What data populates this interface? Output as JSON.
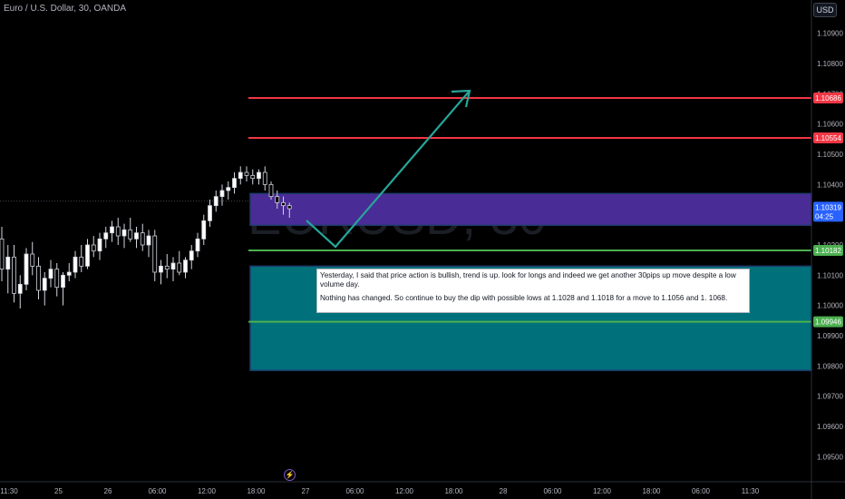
{
  "header": {
    "symbol_title": "Euro / U.S. Dollar, 30, OANDA",
    "currency_button": "USD"
  },
  "watermark": "EURUSD, 30",
  "note": {
    "paragraph1": "Yesterday, I said that price action is bullish, trend is up. look for longs and indeed we get another 30pips up move despite a low volume day.",
    "paragraph2": "Nothing has changed. So continue to buy the dip with possible lows at 1.1028 and 1.1018 for a move to 1.1056 and 1. 1068."
  },
  "price_axis": {
    "ticks": [
      "1.10900",
      "1.10800",
      "1.10700",
      "1.10600",
      "1.10500",
      "1.10400",
      "1.10300",
      "1.10200",
      "1.10100",
      "1.10000",
      "1.09900",
      "1.09800",
      "1.09700",
      "1.09600",
      "1.09500"
    ],
    "ylim": [
      1.0942,
      1.1101
    ]
  },
  "time_axis": {
    "labels": [
      "11:30",
      "25",
      "26",
      "06:00",
      "12:00",
      "18:00",
      "27",
      "06:00",
      "12:00",
      "18:00",
      "28",
      "06:00",
      "12:00",
      "18:00",
      "06:00",
      "11:30"
    ]
  },
  "levels": [
    {
      "price": 1.10686,
      "label": "1.10686",
      "color": "#f23645"
    },
    {
      "price": 1.10554,
      "label": "1.10554",
      "color": "#f23645"
    },
    {
      "price": 1.10182,
      "label": "1.10182",
      "color": "#4caf50"
    },
    {
      "price": 1.09946,
      "label": "1.09946",
      "color": "#4caf50"
    }
  ],
  "current_price": {
    "label": "1.10319",
    "countdown": "04:25",
    "color": "#2962ff"
  },
  "zones": [
    {
      "top": 1.1037,
      "bottom": 1.10265,
      "color": "#4a2c96"
    },
    {
      "top": 1.1013,
      "bottom": 1.09785,
      "color": "#00707a"
    }
  ],
  "colors": {
    "up": "#ffffff",
    "down": "#ffffff",
    "arrow": "#26a69a"
  },
  "chart_data": {
    "type": "candlestick",
    "title": "Euro / U.S. Dollar, 30, OANDA",
    "series": [
      {
        "name": "EURUSD",
        "values": [
          [
            1.1022,
            1.1026,
            1.1008,
            1.1012
          ],
          [
            1.1012,
            1.102,
            1.1004,
            1.1016
          ],
          [
            1.1016,
            1.102,
            1.1001,
            1.1004
          ],
          [
            1.1004,
            1.101,
            1.0999,
            1.1007
          ],
          [
            1.1007,
            1.1019,
            1.1005,
            1.1017
          ],
          [
            1.1017,
            1.1021,
            1.101,
            1.1013
          ],
          [
            1.1013,
            1.1016,
            1.1002,
            1.1005
          ],
          [
            1.1005,
            1.1011,
            1.1,
            1.1009
          ],
          [
            1.1009,
            1.1015,
            1.1006,
            1.1012
          ],
          [
            1.1012,
            1.1014,
            1.1003,
            1.1006
          ],
          [
            1.1006,
            1.1011,
            1.1,
            1.101
          ],
          [
            1.101,
            1.1014,
            1.1008,
            1.1011
          ],
          [
            1.1011,
            1.1018,
            1.1009,
            1.1016
          ],
          [
            1.1016,
            1.102,
            1.1011,
            1.1013
          ],
          [
            1.1013,
            1.1022,
            1.1012,
            1.102
          ],
          [
            1.102,
            1.1023,
            1.1016,
            1.1018
          ],
          [
            1.1018,
            1.1024,
            1.1015,
            1.1022
          ],
          [
            1.1022,
            1.1026,
            1.1019,
            1.1024
          ],
          [
            1.1024,
            1.1028,
            1.1021,
            1.1026
          ],
          [
            1.1026,
            1.1029,
            1.102,
            1.1023
          ],
          [
            1.1023,
            1.1027,
            1.1019,
            1.1025
          ],
          [
            1.1025,
            1.1029,
            1.1021,
            1.1022
          ],
          [
            1.1022,
            1.1026,
            1.1019,
            1.1024
          ],
          [
            1.1024,
            1.1027,
            1.1018,
            1.102
          ],
          [
            1.102,
            1.1025,
            1.1016,
            1.1023
          ],
          [
            1.1023,
            1.1025,
            1.1008,
            1.1011
          ],
          [
            1.1011,
            1.1015,
            1.1007,
            1.1013
          ],
          [
            1.1013,
            1.1017,
            1.1009,
            1.1012
          ],
          [
            1.1012,
            1.1016,
            1.1008,
            1.1014
          ],
          [
            1.1014,
            1.1018,
            1.101,
            1.1011
          ],
          [
            1.1011,
            1.1016,
            1.1009,
            1.1015
          ],
          [
            1.1015,
            1.102,
            1.1012,
            1.1018
          ],
          [
            1.1018,
            1.1024,
            1.1016,
            1.1022
          ],
          [
            1.1022,
            1.103,
            1.102,
            1.1028
          ],
          [
            1.1028,
            1.1035,
            1.1026,
            1.1033
          ],
          [
            1.1033,
            1.1038,
            1.1031,
            1.1036
          ],
          [
            1.1036,
            1.104,
            1.1033,
            1.1038
          ],
          [
            1.1038,
            1.1041,
            1.1035,
            1.1039
          ],
          [
            1.1039,
            1.1044,
            1.1037,
            1.1042
          ],
          [
            1.1042,
            1.1046,
            1.104,
            1.1044
          ],
          [
            1.1044,
            1.1046,
            1.1041,
            1.1043
          ],
          [
            1.1043,
            1.1045,
            1.104,
            1.1042
          ],
          [
            1.1042,
            1.1045,
            1.104,
            1.1044
          ],
          [
            1.1044,
            1.1046,
            1.1038,
            1.104
          ],
          [
            1.104,
            1.1041,
            1.1035,
            1.1036
          ],
          [
            1.1036,
            1.1038,
            1.1032,
            1.1034
          ],
          [
            1.1034,
            1.1036,
            1.103,
            1.1033
          ],
          [
            1.1033,
            1.1034,
            1.1029,
            1.1032
          ]
        ]
      }
    ],
    "ylabel": "USD",
    "ylim": [
      1.0942,
      1.1101
    ]
  }
}
